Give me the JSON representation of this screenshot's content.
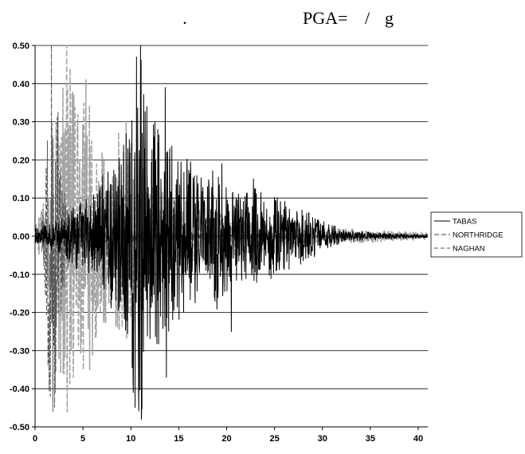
{
  "header": {
    "dot": ".",
    "pga_label": "PGA=",
    "slash": "/",
    "unit": "g"
  },
  "chart_data": {
    "type": "line",
    "title": "",
    "xlabel": "",
    "ylabel": "",
    "xlim": [
      0,
      41
    ],
    "ylim": [
      -0.5,
      0.5
    ],
    "x_ticks": [
      "0",
      "5",
      "10",
      "15",
      "20",
      "25",
      "30",
      "35",
      "40"
    ],
    "y_ticks": [
      "0.50",
      "0.40",
      "0.30",
      "0.20",
      "0.10",
      "0.00",
      "-0.10",
      "-0.20",
      "-0.30",
      "-0.40",
      "-0.50"
    ],
    "grid": "horizontal",
    "legend_position": "right",
    "series": [
      {
        "name": "TABAS",
        "color": "#000000",
        "style": "solid",
        "envelope": [
          [
            0,
            0.02
          ],
          [
            2,
            0.04
          ],
          [
            4,
            0.08
          ],
          [
            6,
            0.12
          ],
          [
            7.5,
            0.18
          ],
          [
            9,
            0.22
          ],
          [
            10,
            0.35
          ],
          [
            10.5,
            0.47
          ],
          [
            11,
            0.5
          ],
          [
            11.5,
            0.4
          ],
          [
            12,
            0.3
          ],
          [
            13,
            0.3
          ],
          [
            14,
            0.25
          ],
          [
            15,
            0.22
          ],
          [
            16,
            0.2
          ],
          [
            17,
            0.18
          ],
          [
            18,
            0.16
          ],
          [
            19,
            0.2
          ],
          [
            20,
            0.15
          ],
          [
            21,
            0.12
          ],
          [
            22,
            0.12
          ],
          [
            23,
            0.14
          ],
          [
            24,
            0.1
          ],
          [
            25,
            0.12
          ],
          [
            26,
            0.1
          ],
          [
            27,
            0.08
          ],
          [
            28,
            0.08
          ],
          [
            29,
            0.06
          ],
          [
            30,
            0.04
          ],
          [
            32,
            0.02
          ],
          [
            35,
            0.01
          ],
          [
            41,
            0.005
          ]
        ],
        "peaks": [
          [
            10.6,
            0.47
          ],
          [
            11.0,
            0.5
          ],
          [
            11.1,
            -0.48
          ],
          [
            13.6,
            0.39
          ],
          [
            13.7,
            -0.37
          ],
          [
            20.5,
            -0.25
          ],
          [
            19.5,
            0.19
          ],
          [
            22.8,
            0.15
          ],
          [
            10.8,
            -0.4
          ],
          [
            12.5,
            0.3
          ]
        ]
      },
      {
        "name": "NORTHRIDGE",
        "color": "#a6a6a6",
        "style": "dashed",
        "envelope": [
          [
            0,
            0.03
          ],
          [
            1,
            0.1
          ],
          [
            2,
            0.3
          ],
          [
            3,
            0.45
          ],
          [
            3.5,
            0.5
          ],
          [
            4,
            0.4
          ],
          [
            5,
            0.42
          ],
          [
            6,
            0.32
          ],
          [
            7,
            0.25
          ],
          [
            8,
            0.2
          ],
          [
            9,
            0.3
          ],
          [
            10,
            0.25
          ],
          [
            11,
            0.2
          ],
          [
            12,
            0.15
          ],
          [
            13,
            0.12
          ],
          [
            14,
            0.12
          ],
          [
            15,
            0.1
          ],
          [
            16,
            0.09
          ],
          [
            18,
            0.08
          ],
          [
            20,
            0.06
          ],
          [
            22,
            0.05
          ],
          [
            25,
            0.04
          ],
          [
            28,
            0.03
          ],
          [
            30,
            0.02
          ],
          [
            33,
            0.02
          ],
          [
            36,
            0.015
          ],
          [
            41,
            0.01
          ]
        ],
        "peaks": [
          [
            3.3,
            0.5
          ],
          [
            5.3,
            0.41
          ],
          [
            9.5,
            0.3
          ],
          [
            4.0,
            -0.37
          ],
          [
            5.7,
            -0.35
          ],
          [
            2.5,
            -0.32
          ]
        ]
      },
      {
        "name": "NAGHAN",
        "color": "#555555",
        "style": "dashed",
        "envelope": [
          [
            0,
            0.01
          ],
          [
            0.8,
            0.05
          ],
          [
            1.2,
            0.25
          ],
          [
            1.5,
            0.45
          ],
          [
            1.8,
            0.5
          ],
          [
            2.1,
            0.45
          ],
          [
            2.5,
            0.3
          ],
          [
            3,
            0.15
          ],
          [
            4,
            0.06
          ],
          [
            6,
            0.03
          ],
          [
            10,
            0.02
          ],
          [
            15,
            0.01
          ],
          [
            25,
            0.008
          ],
          [
            41,
            0.005
          ]
        ],
        "peaks": [
          [
            1.7,
            0.5
          ],
          [
            1.85,
            -0.46
          ],
          [
            2.1,
            -0.41
          ],
          [
            1.3,
            0.25
          ],
          [
            1.35,
            -0.34
          ]
        ]
      }
    ]
  }
}
